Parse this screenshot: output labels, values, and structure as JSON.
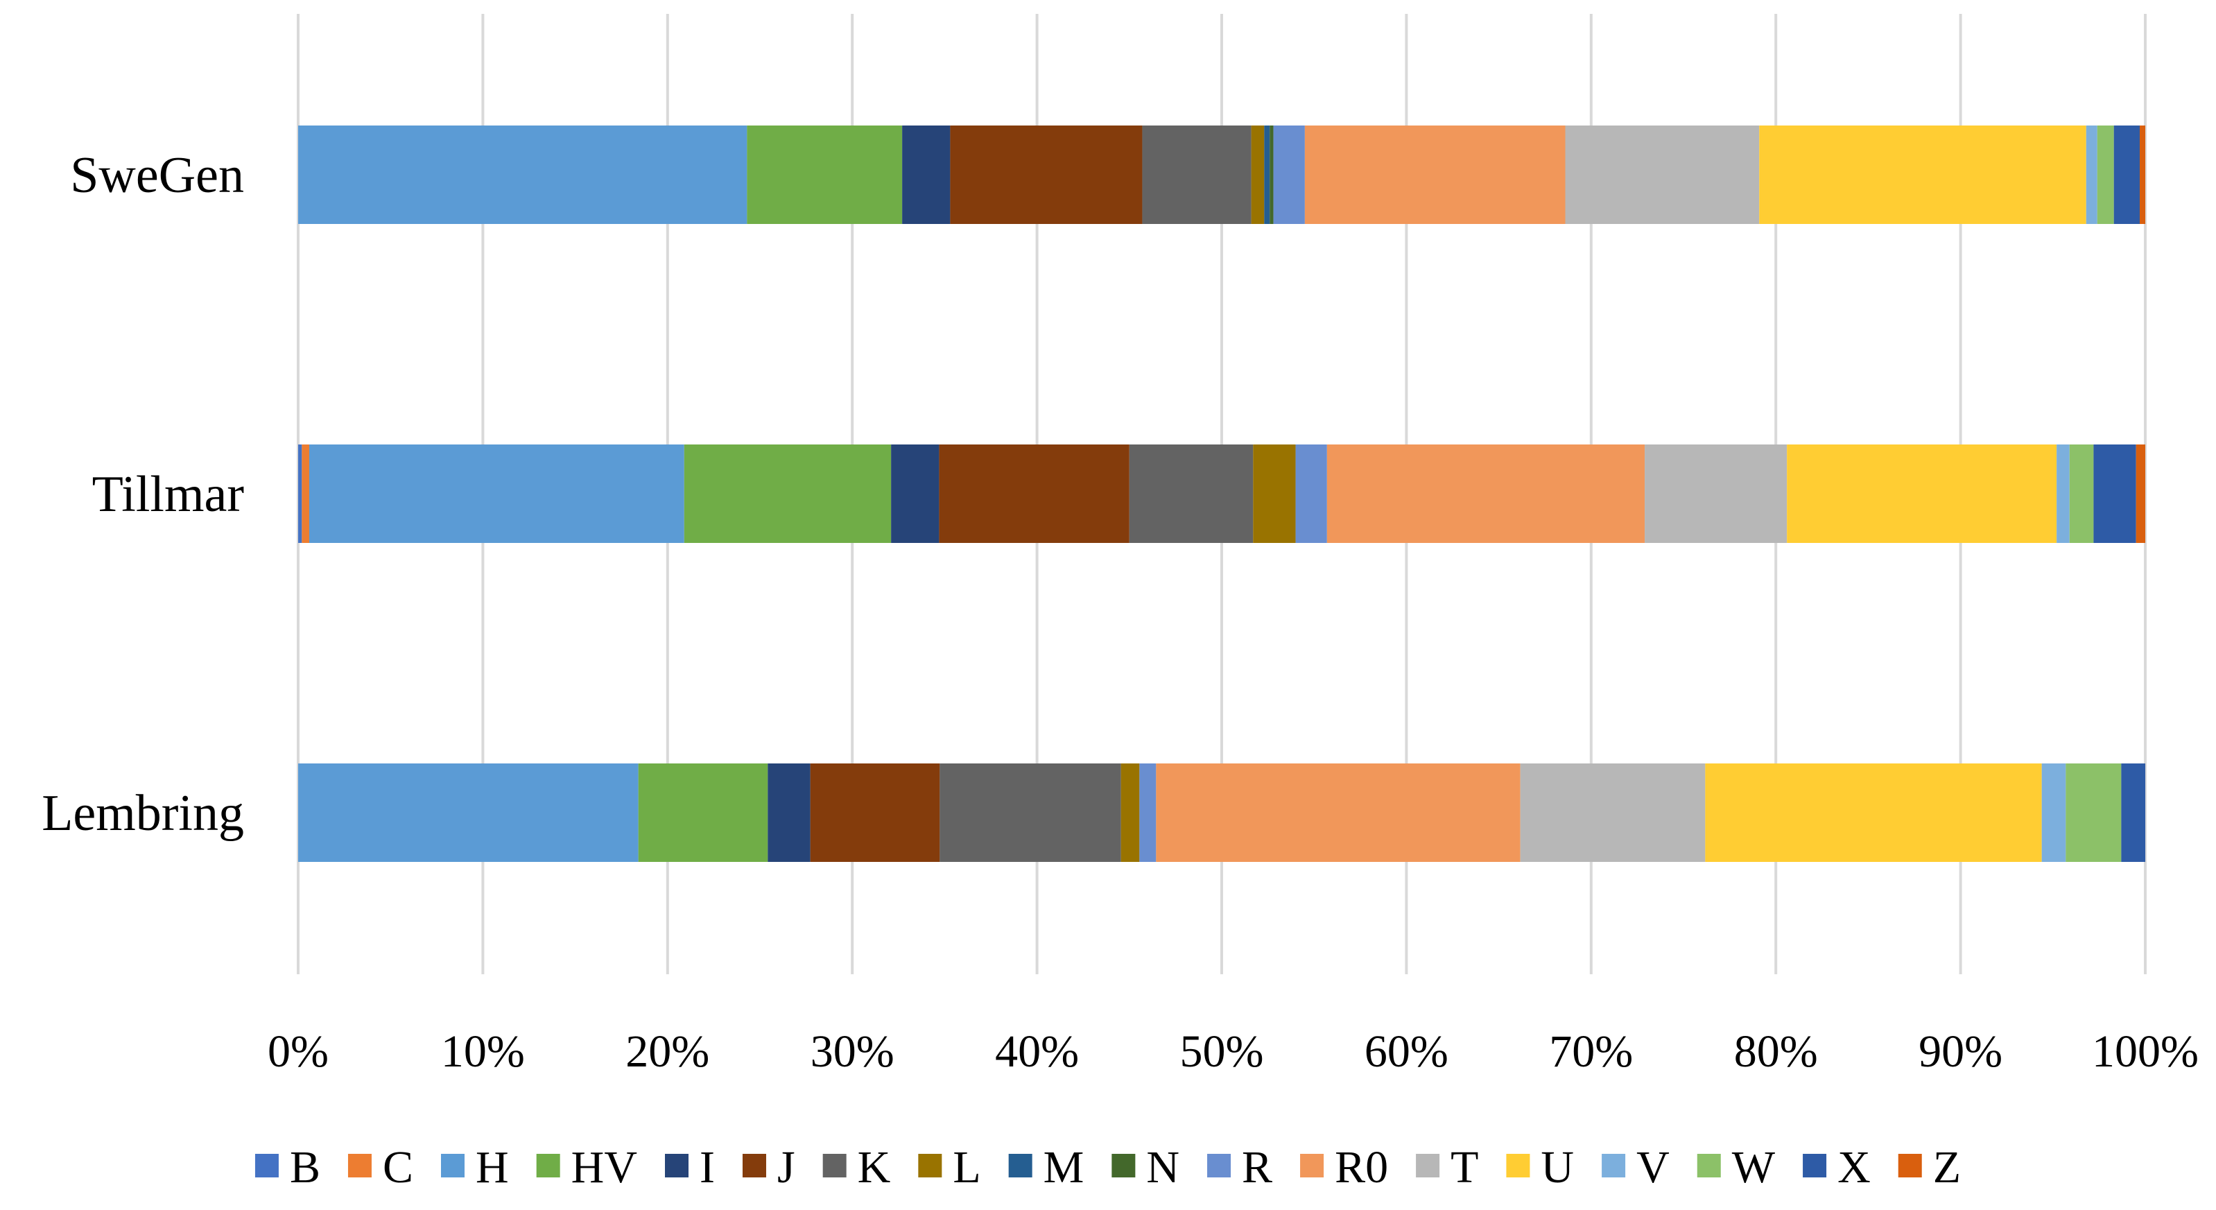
{
  "chart_data": {
    "type": "bar",
    "orientation": "horizontal",
    "stacked": "percent",
    "title": "",
    "xlabel": "",
    "ylabel": "",
    "xlim": [
      0,
      100
    ],
    "grid": true,
    "legend_position": "bottom",
    "x_ticks": [
      "0%",
      "10%",
      "20%",
      "30%",
      "40%",
      "50%",
      "60%",
      "70%",
      "80%",
      "90%",
      "100%"
    ],
    "x_tick_values": [
      0,
      10,
      20,
      30,
      40,
      50,
      60,
      70,
      80,
      90,
      100
    ],
    "categories": [
      "SweGen",
      "Tillmar",
      "Lembring"
    ],
    "series": [
      {
        "name": "B",
        "color": "#4472C4",
        "values": [
          0.0,
          0.2,
          0.0
        ]
      },
      {
        "name": "C",
        "color": "#ED7D31",
        "values": [
          0.0,
          0.4,
          0.0
        ]
      },
      {
        "name": "H",
        "color": "#5B9BD5",
        "values": [
          24.3,
          20.3,
          18.4
        ]
      },
      {
        "name": "HV",
        "color": "#70AD47",
        "values": [
          8.4,
          11.2,
          7.0
        ]
      },
      {
        "name": "I",
        "color": "#264478",
        "values": [
          2.6,
          2.6,
          2.3
        ]
      },
      {
        "name": "J",
        "color": "#843C0C",
        "values": [
          10.4,
          10.3,
          7.0
        ]
      },
      {
        "name": "K",
        "color": "#636363",
        "values": [
          5.9,
          6.7,
          9.8
        ]
      },
      {
        "name": "L",
        "color": "#997300",
        "values": [
          0.7,
          2.3,
          1.0
        ]
      },
      {
        "name": "M",
        "color": "#255E91",
        "values": [
          0.3,
          0.0,
          0.0
        ]
      },
      {
        "name": "N",
        "color": "#43682B",
        "values": [
          0.2,
          0.0,
          0.0
        ]
      },
      {
        "name": "R",
        "color": "#698ED0",
        "values": [
          1.7,
          1.7,
          0.9
        ]
      },
      {
        "name": "R0",
        "color": "#F1975A",
        "values": [
          14.1,
          17.2,
          19.7
        ]
      },
      {
        "name": "T",
        "color": "#B7B7B7",
        "values": [
          10.5,
          7.7,
          10.0
        ]
      },
      {
        "name": "U",
        "color": "#FFCD33",
        "values": [
          17.7,
          14.6,
          18.2
        ]
      },
      {
        "name": "V",
        "color": "#7CAFDD",
        "values": [
          0.6,
          0.7,
          1.3
        ]
      },
      {
        "name": "W",
        "color": "#8CC168",
        "values": [
          0.9,
          1.3,
          3.0
        ]
      },
      {
        "name": "X",
        "color": "#2E5BA6",
        "values": [
          1.4,
          2.3,
          1.3
        ]
      },
      {
        "name": "Z",
        "color": "#D95F0E",
        "values": [
          0.3,
          0.5,
          0.0
        ]
      }
    ]
  }
}
